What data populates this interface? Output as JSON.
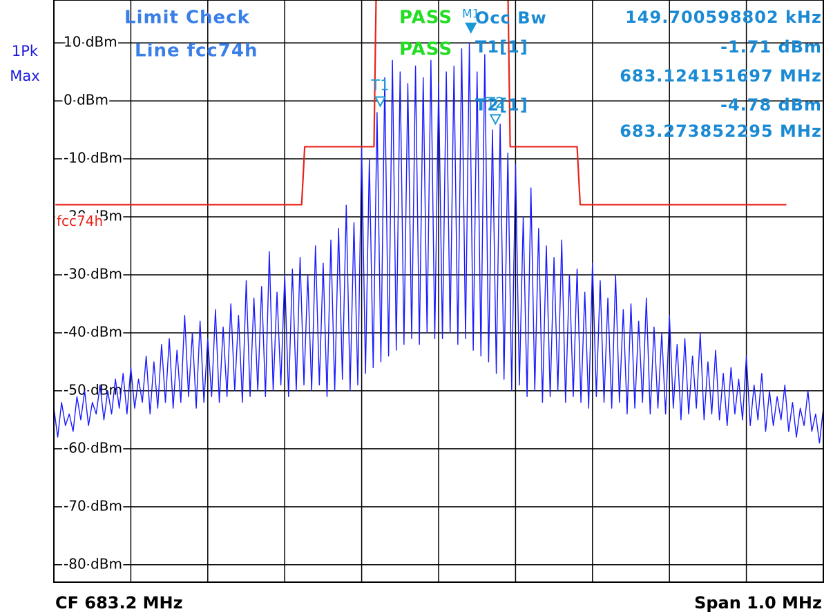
{
  "chart_data": {
    "type": "line",
    "annotations": [
      "Limit Check",
      "Line fcc74h",
      "PASS",
      "PASS",
      "Occ Bw",
      "149.700598802 kHz",
      "T1[1]",
      "-1.71 dBm",
      "683.124151697 MHz",
      "T2[1]",
      "-4.78 dBm",
      "683.273852295 MHz",
      "1Pk",
      "Max",
      "CF 683.2 MHz",
      "Span 1.0 MHz"
    ],
    "xlim": [
      682.7,
      683.7
    ],
    "xticks": [
      682.8,
      682.9,
      683.0,
      683.1,
      683.2,
      683.3,
      683.4,
      683.5,
      683.6
    ],
    "ylim": [
      -83,
      17.4
    ],
    "yticks": [
      {
        "value": 10,
        "label": "10 dBm"
      },
      {
        "value": 0,
        "label": "0 dBm"
      },
      {
        "value": -10,
        "label": "-10 dBm"
      },
      {
        "value": -20,
        "label": "-20 dBm"
      },
      {
        "value": -30,
        "label": "-30 dBm"
      },
      {
        "value": -40,
        "label": "-40 dBm"
      },
      {
        "value": -50,
        "label": "-50 dBm"
      },
      {
        "value": -60,
        "label": "-60 dBm"
      },
      {
        "value": -70,
        "label": "-70 dBm"
      },
      {
        "value": -80,
        "label": "-80 dBm"
      }
    ],
    "grid": true,
    "series": [
      {
        "color": "#1a1aff",
        "x": [
          682.7,
          682.705,
          682.71,
          682.715,
          682.72,
          682.725,
          682.73,
          682.735,
          682.74,
          682.745,
          682.75,
          682.755,
          682.76,
          682.765,
          682.77,
          682.775,
          682.78,
          682.785,
          682.79,
          682.795,
          682.8,
          682.805,
          682.81,
          682.815,
          682.82,
          682.825,
          682.83,
          682.835,
          682.84,
          682.845,
          682.85,
          682.855,
          682.86,
          682.865,
          682.87,
          682.875,
          682.88,
          682.885,
          682.89,
          682.895,
          682.9,
          682.905,
          682.91,
          682.915,
          682.92,
          682.925,
          682.93,
          682.935,
          682.94,
          682.945,
          682.95,
          682.955,
          682.96,
          682.965,
          682.97,
          682.975,
          682.98,
          682.985,
          682.99,
          682.995,
          683.0,
          683.005,
          683.01,
          683.015,
          683.02,
          683.025,
          683.03,
          683.035,
          683.04,
          683.045,
          683.05,
          683.055,
          683.06,
          683.065,
          683.07,
          683.075,
          683.08,
          683.085,
          683.09,
          683.095,
          683.1,
          683.105,
          683.11,
          683.115,
          683.12,
          683.125,
          683.13,
          683.135,
          683.14,
          683.145,
          683.15,
          683.155,
          683.16,
          683.165,
          683.17,
          683.175,
          683.18,
          683.185,
          683.19,
          683.195,
          683.2,
          683.205,
          683.21,
          683.215,
          683.22,
          683.225,
          683.23,
          683.235,
          683.24,
          683.245,
          683.25,
          683.255,
          683.26,
          683.265,
          683.27,
          683.275,
          683.28,
          683.285,
          683.29,
          683.295,
          683.3,
          683.305,
          683.31,
          683.315,
          683.32,
          683.325,
          683.33,
          683.335,
          683.34,
          683.345,
          683.35,
          683.355,
          683.36,
          683.365,
          683.37,
          683.375,
          683.38,
          683.385,
          683.39,
          683.395,
          683.4,
          683.405,
          683.41,
          683.415,
          683.42,
          683.425,
          683.43,
          683.435,
          683.44,
          683.445,
          683.45,
          683.455,
          683.46,
          683.465,
          683.47,
          683.475,
          683.48,
          683.485,
          683.49,
          683.495,
          683.5,
          683.505,
          683.51,
          683.515,
          683.52,
          683.525,
          683.53,
          683.535,
          683.54,
          683.545,
          683.55,
          683.555,
          683.56,
          683.565,
          683.57,
          683.575,
          683.58,
          683.585,
          683.59,
          683.595,
          683.6,
          683.605,
          683.61,
          683.615,
          683.62,
          683.625,
          683.63,
          683.635,
          683.64,
          683.645,
          683.65,
          683.655,
          683.66,
          683.665,
          683.67,
          683.675,
          683.68,
          683.685,
          683.69,
          683.695,
          683.7
        ],
        "values": [
          -53,
          -58,
          -52,
          -56,
          -54,
          -57,
          -51,
          -55,
          -50,
          -56,
          -52,
          -54,
          -49,
          -55,
          -50,
          -54,
          -48,
          -53,
          -47,
          -54,
          -46,
          -53,
          -48,
          -52,
          -44,
          -54,
          -45,
          -53,
          -42,
          -52,
          -41,
          -53,
          -43,
          -52,
          -37,
          -51,
          -40,
          -53,
          -38,
          -52,
          -41,
          -51,
          -36,
          -52,
          -39,
          -51,
          -35,
          -50,
          -37,
          -52,
          -31,
          -51,
          -34,
          -50,
          -32,
          -51,
          -26,
          -50,
          -33,
          -49,
          -30,
          -51,
          -29,
          -50,
          -27,
          -49,
          -30,
          -50,
          -25,
          -49,
          -28,
          -51,
          -24,
          -50,
          -22,
          -48,
          -18,
          -50,
          -21,
          -49,
          -8,
          -47,
          -10,
          -46,
          -2,
          -45,
          4,
          -44,
          7,
          -43,
          5,
          -42,
          3,
          -41,
          6,
          -42,
          4,
          -40,
          7,
          -41,
          3,
          -41,
          5,
          -40,
          6,
          -42,
          9,
          -41,
          10,
          -43,
          5,
          -44,
          8,
          -45,
          -5,
          -47,
          -4,
          -48,
          -9,
          -50,
          -11,
          -49,
          -20,
          -51,
          -15,
          -50,
          -22,
          -52,
          -25,
          -51,
          -27,
          -50,
          -24,
          -52,
          -30,
          -51,
          -29,
          -52,
          -33,
          -53,
          -28,
          -51,
          -31,
          -52,
          -34,
          -53,
          -30,
          -52,
          -36,
          -54,
          -35,
          -53,
          -38,
          -52,
          -34,
          -54,
          -39,
          -53,
          -40,
          -54,
          -37,
          -53,
          -42,
          -55,
          -41,
          -54,
          -44,
          -53,
          -40,
          -55,
          -45,
          -54,
          -43,
          -55,
          -47,
          -56,
          -46,
          -54,
          -48,
          -55,
          -44,
          -56,
          -49,
          -55,
          -47,
          -57,
          -50,
          -56,
          -51,
          -55,
          -49,
          -57,
          -52,
          -58,
          -53,
          -56,
          -50,
          -57,
          -54,
          -59,
          -53
        ]
      },
      {
        "name": "fcc74h",
        "color": "#e8231a",
        "x": [
          682.702,
          683.022,
          683.026,
          683.116,
          683.119,
          683.29,
          683.293,
          683.38,
          683.384,
          683.652
        ],
        "values": [
          -17.9,
          -17.9,
          -7.9,
          -7.9,
          20,
          20,
          -7.9,
          -7.9,
          -17.9,
          -17.9
        ]
      }
    ],
    "markers": [
      {
        "label": "M1",
        "x": 683.242,
        "y": 11,
        "filled": true
      },
      {
        "label": "T1",
        "x": 683.124151697,
        "y": -1.71,
        "filled": false
      },
      {
        "label": "T2",
        "x": 683.273852295,
        "y": -4.78,
        "filled": false
      }
    ]
  }
}
